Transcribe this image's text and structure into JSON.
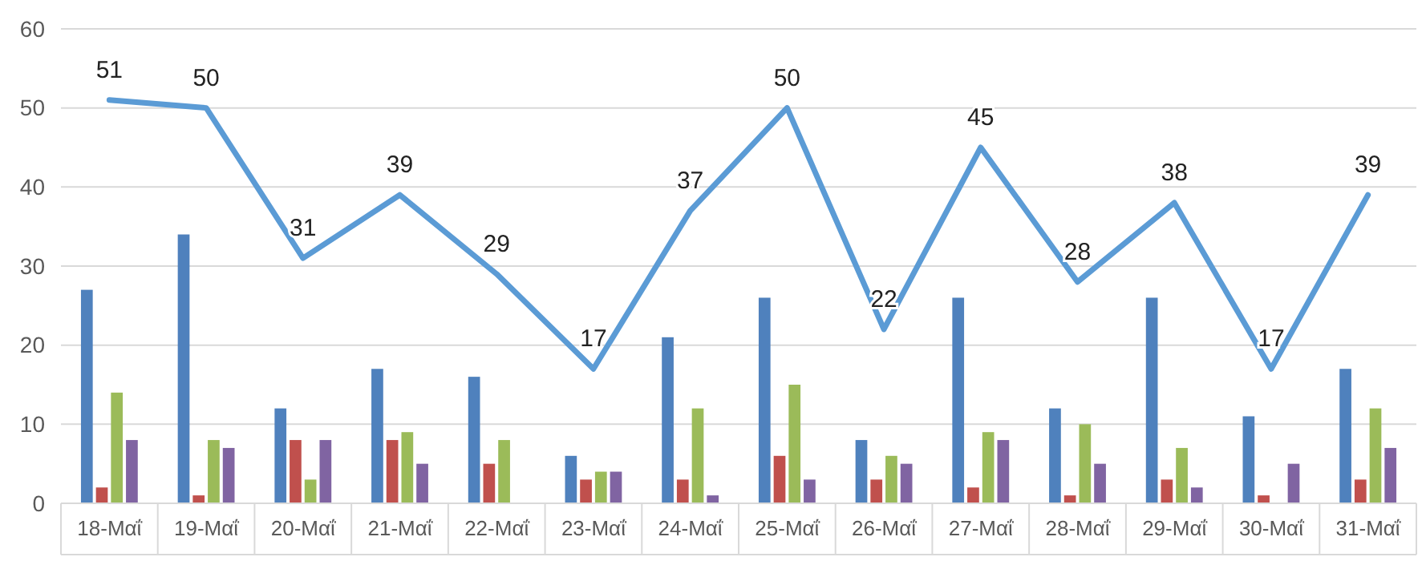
{
  "chart_data": {
    "type": "bar",
    "categories": [
      "18-Μαΐ",
      "19-Μαΐ",
      "20-Μαΐ",
      "21-Μαΐ",
      "22-Μαΐ",
      "23-Μαΐ",
      "24-Μαΐ",
      "25-Μαΐ",
      "26-Μαΐ",
      "27-Μαΐ",
      "28-Μαΐ",
      "29-Μαΐ",
      "30-Μαΐ",
      "31-Μαΐ"
    ],
    "series": [
      {
        "color": "#4f81bd",
        "values": [
          27,
          34,
          12,
          17,
          16,
          6,
          21,
          26,
          8,
          26,
          12,
          26,
          11,
          17
        ]
      },
      {
        "color": "#c0504d",
        "values": [
          2,
          1,
          8,
          8,
          5,
          3,
          3,
          6,
          3,
          2,
          1,
          3,
          1,
          3
        ]
      },
      {
        "color": "#9bbb59",
        "values": [
          14,
          8,
          3,
          9,
          8,
          4,
          12,
          15,
          6,
          9,
          10,
          7,
          null,
          12
        ]
      },
      {
        "color": "#8064a2",
        "values": [
          8,
          7,
          8,
          5,
          null,
          4,
          1,
          3,
          5,
          8,
          5,
          2,
          5,
          7
        ]
      },
      {
        "type": "line",
        "color": "#5b9bd5",
        "data_labels": true,
        "values": [
          51,
          50,
          31,
          39,
          29,
          17,
          37,
          50,
          22,
          45,
          28,
          38,
          17,
          39
        ]
      }
    ],
    "ylim": [
      0,
      60
    ],
    "yticks": [
      0,
      10,
      20,
      30,
      40,
      50,
      60
    ],
    "grid": "y"
  }
}
